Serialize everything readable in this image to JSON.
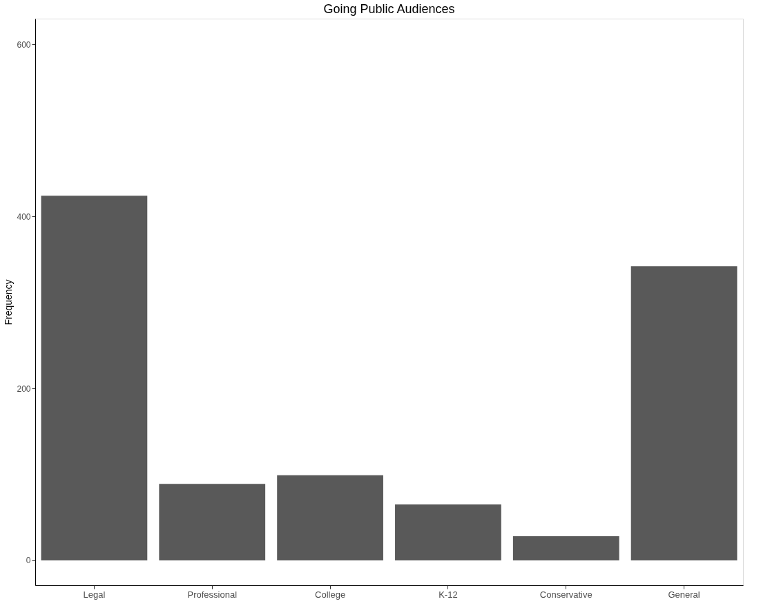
{
  "chart_data": {
    "type": "bar",
    "title": "Going Public Audiences",
    "ylabel": "Frequency",
    "categories": [
      "Legal",
      "Professional",
      "College",
      "K-12",
      "Conservative",
      "General"
    ],
    "values": [
      424,
      89,
      99,
      65,
      28,
      342
    ],
    "color": "#595959",
    "ylim": [
      -29,
      630
    ],
    "yticks": [
      0,
      200,
      400,
      600
    ],
    "grid": false
  }
}
